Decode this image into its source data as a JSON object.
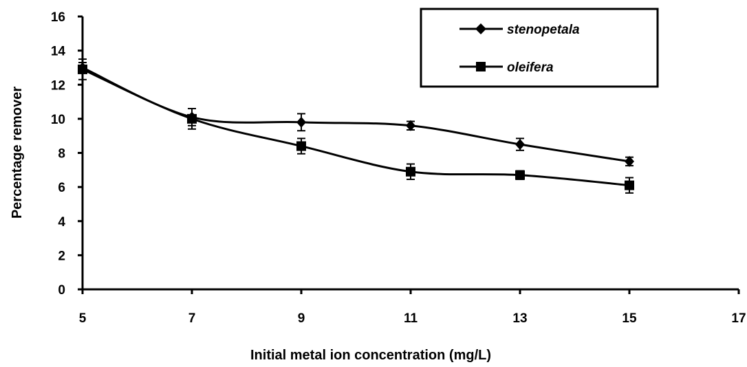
{
  "chart_data": {
    "type": "line",
    "title": "",
    "xlabel": "Initial metal ion concentration (mg/L)",
    "ylabel": "Percentage remover",
    "xlim": [
      5,
      17
    ],
    "ylim": [
      0,
      16
    ],
    "x_ticks": [
      5,
      7,
      9,
      11,
      13,
      15,
      17
    ],
    "y_ticks": [
      0,
      2,
      4,
      6,
      8,
      10,
      12,
      14,
      16
    ],
    "grid": false,
    "legend_position": "top-right",
    "series": [
      {
        "name": "stenopetala",
        "marker": "diamond",
        "color": "#000000",
        "x": [
          5,
          7,
          9,
          11,
          13,
          15
        ],
        "y": [
          13.0,
          10.1,
          9.8,
          9.6,
          8.5,
          7.5
        ],
        "error": [
          0.3,
          0.5,
          0.5,
          0.25,
          0.35,
          0.25
        ]
      },
      {
        "name": "oleifera",
        "marker": "square",
        "color": "#000000",
        "x": [
          5,
          7,
          9,
          11,
          13,
          15
        ],
        "y": [
          12.9,
          10.0,
          8.4,
          6.9,
          6.7,
          6.1
        ],
        "error": [
          0.6,
          0.6,
          0.45,
          0.45,
          0.25,
          0.45
        ]
      }
    ]
  }
}
